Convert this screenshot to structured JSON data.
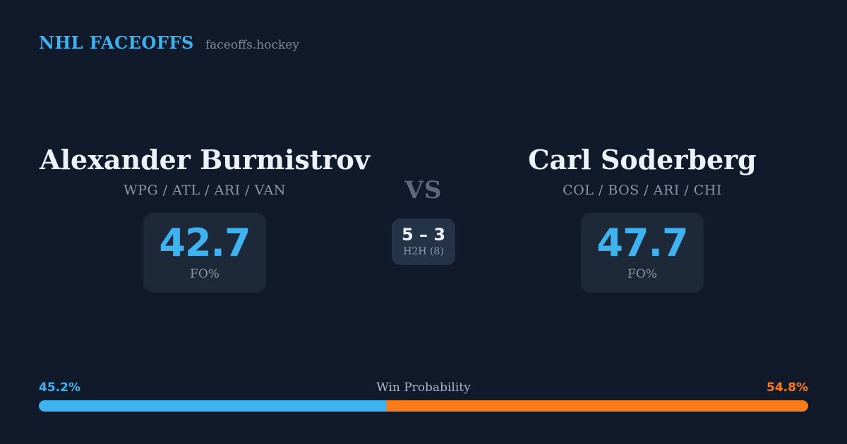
{
  "header": {
    "brand": "NHL FACEOFFS",
    "site": "faceoffs.hockey"
  },
  "players": [
    {
      "name": "Alexander Burmistrov",
      "teams": "WPG / ATL / ARI / VAN",
      "fo_pct": "42.7",
      "fo_label": "FO%"
    },
    {
      "name": "Carl Soderberg",
      "teams": "COL / BOS / ARI / CHI",
      "fo_pct": "47.7",
      "fo_label": "FO%"
    }
  ],
  "matchup": {
    "vs_label": "VS",
    "h2h_score": "5 – 3",
    "h2h_label": "H2H (8)"
  },
  "win_probability": {
    "label": "Win Probability",
    "left_pct": "45.2%",
    "right_pct": "54.8%",
    "left_value": 45.2,
    "right_value": 54.8
  },
  "colors": {
    "background": "#111a2b",
    "card": "#1d2939",
    "h2h_card": "#253348",
    "accent_blue": "#3eb3ef",
    "accent_orange": "#f87d1a",
    "text_primary": "#edf1f8",
    "text_muted": "#8b97ab",
    "text_dim": "#7d8899",
    "vs_color": "#5c6a80",
    "label_color": "#a9b3c4"
  }
}
